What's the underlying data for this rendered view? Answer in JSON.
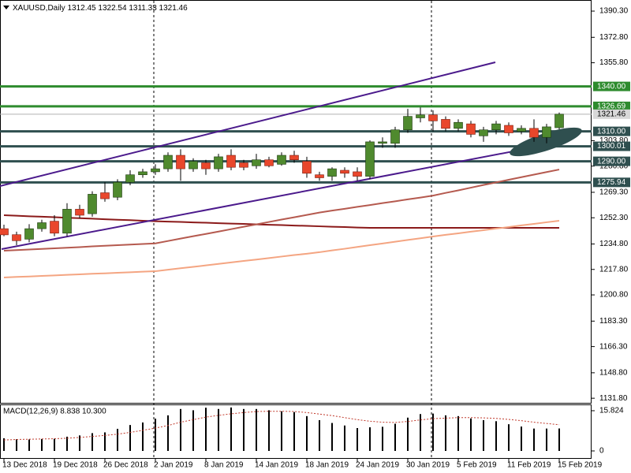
{
  "chart_data": {
    "type": "candlestick",
    "title": "XAUUSD,Daily",
    "categories": [
      "13 Dec 2018",
      null,
      null,
      null,
      "19 Dec 2018",
      null,
      null,
      null,
      "26 Dec 2018",
      null,
      null,
      null,
      "2 Jan 2019",
      null,
      null,
      null,
      "8 Jan 2019",
      null,
      null,
      null,
      "14 Jan 2019",
      null,
      null,
      null,
      "18 Jan 2019",
      null,
      null,
      null,
      "24 Jan 2019",
      null,
      null,
      null,
      "30 Jan 2019",
      null,
      null,
      null,
      "5 Feb 2019",
      null,
      null,
      null,
      "11 Feb 2019",
      null,
      null,
      null,
      "15 Feb 2019"
    ],
    "open": [
      1245,
      1241,
      1238,
      1245,
      1250,
      1242,
      1258,
      1255,
      1269,
      1266,
      1276,
      1281,
      1283,
      1285,
      1294,
      1285,
      1289,
      1285,
      1294,
      1289,
      1287,
      1291,
      1288,
      1294,
      1290,
      1281,
      1280,
      1284,
      1283,
      1280,
      1302,
      1302,
      1311,
      1319,
      1321,
      1318,
      1312,
      1315,
      1307,
      1311,
      1314,
      1310,
      1312,
      1306,
      1312.45
    ],
    "high": [
      1247.7,
      1243,
      1248,
      1251,
      1254,
      1262,
      1261,
      1270,
      1276,
      1278,
      1284,
      1285,
      1288,
      1296,
      1298,
      1292,
      1291,
      1295,
      1298,
      1291,
      1295,
      1293,
      1296,
      1297,
      1293,
      1283,
      1286,
      1286,
      1286,
      1304,
      1306,
      1313,
      1325,
      1326,
      1324,
      1320,
      1318,
      1317,
      1313,
      1317,
      1316,
      1314,
      1318,
      1315,
      1322.54
    ],
    "low": [
      1240,
      1234,
      1236,
      1243,
      1240,
      1240,
      1252,
      1253,
      1263,
      1264,
      1274,
      1279,
      1281,
      1283,
      1277,
      1283,
      1281,
      1283,
      1284,
      1284,
      1285,
      1286,
      1287,
      1289,
      1279,
      1277,
      1277,
      1279,
      1277,
      1278,
      1299,
      1299,
      1309,
      1316,
      1310,
      1310,
      1310,
      1306,
      1303,
      1308,
      1307,
      1308,
      1303,
      1302,
      1311.33
    ],
    "close": [
      1240.9,
      1237,
      1245,
      1249,
      1242,
      1258,
      1254,
      1268,
      1265,
      1276,
      1281,
      1283,
      1285,
      1294,
      1285,
      1290,
      1285,
      1293,
      1286,
      1286,
      1291,
      1287,
      1294,
      1291,
      1282,
      1279,
      1285,
      1282,
      1280,
      1303,
      1303,
      1311,
      1320,
      1321,
      1317,
      1312,
      1316,
      1308,
      1311,
      1315,
      1309,
      1312,
      1306,
      1313,
      1321.46
    ],
    "up_color": "#4f8a2e",
    "down_color": "#e9472c",
    "moving_averages": [
      {
        "color": "#8b1a1a",
        "values": [
          1254.0,
          1253.7,
          1253.3,
          1253.0,
          1252.7,
          1252.3,
          1252.0,
          1251.7,
          1251.3,
          1251.0,
          1250.7,
          1250.3,
          1250.0,
          1249.7,
          1249.5,
          1249.2,
          1249.0,
          1248.7,
          1248.4,
          1248.2,
          1247.9,
          1247.6,
          1247.4,
          1247.1,
          1246.9,
          1246.6,
          1246.3,
          1246.1,
          1245.8,
          1245.6,
          1245.6,
          1245.6,
          1245.6,
          1245.6,
          1245.6,
          1245.6,
          1245.6,
          1245.6,
          1245.6,
          1245.6,
          1245.6,
          1245.6,
          1245.6,
          1245.6,
          1245.6
        ]
      },
      {
        "color": "#b55a4f",
        "values": [
          1230.3,
          1230.7,
          1231.1,
          1231.5,
          1231.9,
          1232.3,
          1232.7,
          1233.2,
          1233.6,
          1234.0,
          1234.4,
          1234.8,
          1235.2,
          1236.8,
          1238.4,
          1240.0,
          1241.5,
          1243.1,
          1244.7,
          1246.3,
          1247.9,
          1249.5,
          1251.1,
          1252.6,
          1254.2,
          1255.8,
          1257.1,
          1258.3,
          1259.6,
          1260.8,
          1262.1,
          1263.3,
          1264.6,
          1265.8,
          1267.1,
          1268.9,
          1270.6,
          1272.4,
          1274.2,
          1275.9,
          1277.7,
          1279.4,
          1281.1,
          1282.8,
          1284.5
        ]
      },
      {
        "color": "#f4a582",
        "values": [
          1212.4,
          1212.8,
          1213.1,
          1213.5,
          1213.8,
          1214.2,
          1214.5,
          1214.9,
          1215.2,
          1215.6,
          1215.9,
          1216.3,
          1216.6,
          1217.6,
          1218.6,
          1219.5,
          1220.5,
          1221.5,
          1222.5,
          1223.5,
          1224.4,
          1225.4,
          1226.4,
          1227.4,
          1228.3,
          1229.3,
          1230.5,
          1231.6,
          1232.8,
          1234.0,
          1235.1,
          1236.3,
          1237.5,
          1238.6,
          1239.8,
          1240.9,
          1241.9,
          1243.0,
          1244.0,
          1245.1,
          1246.1,
          1247.2,
          1248.2,
          1249.3,
          1250.3
        ]
      }
    ],
    "levels": [
      {
        "value": 1340,
        "label": "1340.00",
        "color": "#2e8b2e"
      },
      {
        "value": 1326.69,
        "label": "1326.69",
        "color": "#2e8b2e"
      },
      {
        "value": 1310,
        "label": "1310.00",
        "color": "#2f4f4f"
      },
      {
        "value": 1300.01,
        "label": "1300.01",
        "color": "#2f4f4f"
      },
      {
        "value": 1290,
        "label": "1290.00",
        "color": "#2f4f4f"
      },
      {
        "value": 1275.94,
        "label": "1275.94",
        "color": "#2f4f4f"
      }
    ],
    "ylim": [
      1128.2,
      1397.7
    ],
    "yticks": [
      {
        "value": 1390.3,
        "label": "1390.30"
      },
      {
        "value": 1372.8,
        "label": "1372.80"
      },
      {
        "value": 1355.8,
        "label": "1355.80"
      },
      {
        "value": 1303.8,
        "label": "1303.80"
      },
      {
        "value": 1286.8,
        "label": "1286.80"
      },
      {
        "value": 1269.3,
        "label": "1269.30"
      },
      {
        "value": 1252.3,
        "label": "1252.30"
      },
      {
        "value": 1234.8,
        "label": "1234.80"
      },
      {
        "value": 1217.8,
        "label": "1217.80"
      },
      {
        "value": 1200.8,
        "label": "1200.80"
      },
      {
        "value": 1183.3,
        "label": "1183.30"
      },
      {
        "value": 1166.3,
        "label": "1166.30"
      },
      {
        "value": 1148.8,
        "label": "1148.80"
      },
      {
        "value": 1131.8,
        "label": "1131.80"
      }
    ],
    "macd": {
      "title": "MACD(12,26,9) 8.838 10.300",
      "histogram": [
        5.0,
        4.6,
        4.5,
        4.7,
        4.8,
        5.6,
        6.1,
        7.0,
        7.3,
        8.7,
        10.2,
        11.2,
        12.7,
        14.0,
        16.5,
        16.0,
        17.0,
        16.5,
        17.1,
        16.5,
        16.5,
        16.0,
        15.6,
        15.3,
        13.7,
        12.1,
        11.0,
        10.0,
        9.0,
        9.3,
        9.5,
        10.7,
        13.1,
        14.5,
        14.7,
        14.0,
        13.7,
        12.8,
        12.1,
        11.7,
        10.5,
        9.6,
        8.8,
        8.8,
        8.838
      ],
      "signal": [
        4.3,
        4.5,
        4.6,
        4.7,
        4.8,
        5.0,
        5.3,
        5.7,
        6.1,
        6.6,
        7.3,
        8.1,
        9.0,
        10.0,
        11.3,
        12.3,
        13.3,
        14.0,
        14.6,
        15.1,
        15.5,
        15.6,
        15.6,
        15.5,
        15.1,
        14.5,
        13.9,
        13.1,
        12.3,
        11.7,
        11.3,
        11.2,
        11.6,
        12.2,
        12.7,
        12.9,
        13.1,
        13.1,
        13.0,
        12.8,
        12.4,
        11.9,
        11.3,
        10.8,
        10.3
      ],
      "histogram_color": "#000000",
      "signal_color": "#c0392b",
      "ylim": [
        -3.1,
        18.3
      ],
      "yticks": [
        15.824,
        0
      ]
    }
  }
}
